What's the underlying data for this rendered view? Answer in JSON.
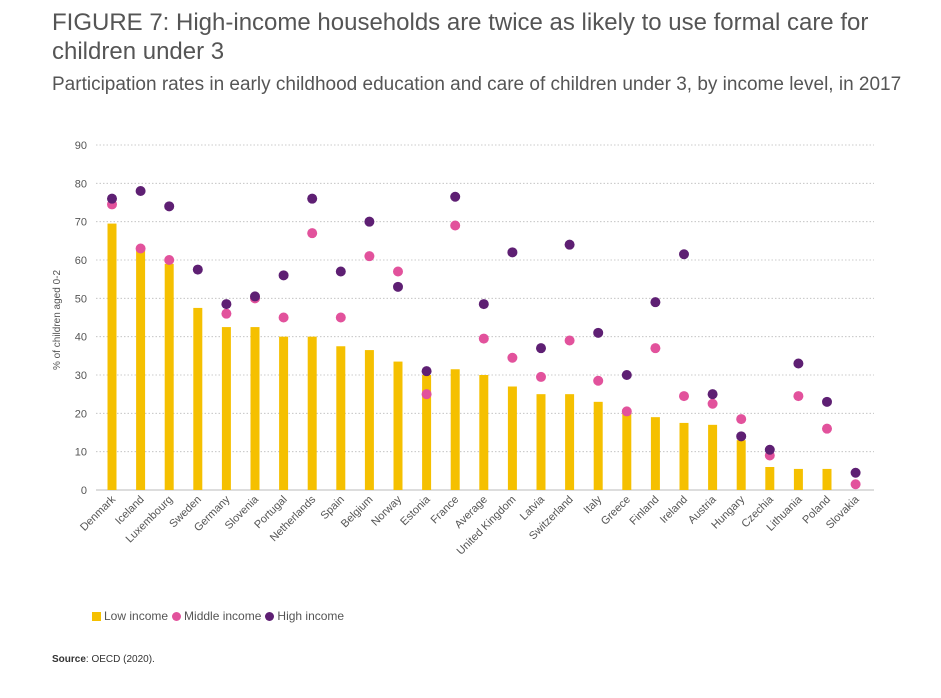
{
  "title": "FIGURE 7: High-income households are twice as likely to use formal care for children under 3",
  "subtitle": "Participation rates in early childhood education and care of children under 3, by income level, in 2017",
  "source_label": "Source",
  "source_text": ": OECD (2020).",
  "colors": {
    "low": "#F5C000",
    "middle": "#E2529C",
    "high": "#5E1F73",
    "grid": "#BBBBBB",
    "text": "#555555"
  },
  "chart_data": {
    "type": "bar",
    "title": "FIGURE 7: High-income households are twice as likely to use formal care for children under 3",
    "xlabel": "",
    "ylabel": "% of children aged 0-2",
    "ylim": [
      0,
      90
    ],
    "yticks": [
      0,
      10,
      20,
      30,
      40,
      50,
      60,
      70,
      80,
      90
    ],
    "grid": true,
    "legend_position": "bottom-left",
    "categories": [
      "Denmark",
      "Iceland",
      "Luxembourg",
      "Sweden",
      "Germany",
      "Slovenia",
      "Portugal",
      "Netherlands",
      "Spain",
      "Belgium",
      "Norway",
      "Estonia",
      "France",
      "Average",
      "United Kingdom",
      "Latvia",
      "Switzerland",
      "Italy",
      "Greece",
      "Finland",
      "Ireland",
      "Austria",
      "Hungary",
      "Czechia",
      "Lithuania",
      "Poland",
      "Slovakia"
    ],
    "series": [
      {
        "name": "Low income",
        "kind": "bar",
        "values": [
          69.5,
          62.5,
          59,
          47.5,
          42.5,
          42.5,
          40,
          40,
          37.5,
          36.5,
          33.5,
          30,
          31.5,
          30,
          27,
          25,
          25,
          23,
          21,
          19,
          17.5,
          17,
          13,
          6,
          5.5,
          5.5,
          0
        ]
      },
      {
        "name": "Middle income",
        "kind": "dot",
        "values": [
          74.5,
          63,
          60,
          null,
          46,
          50,
          45,
          67,
          45,
          61,
          57,
          25,
          69,
          39.5,
          34.5,
          29.5,
          39,
          28.5,
          20.5,
          37,
          24.5,
          22.5,
          18.5,
          9,
          24.5,
          16,
          1.5
        ]
      },
      {
        "name": "High income",
        "kind": "dot",
        "values": [
          76,
          78,
          74,
          57.5,
          48.5,
          50.5,
          56,
          76,
          57,
          70,
          53,
          31,
          76.5,
          48.5,
          62,
          37,
          64,
          41,
          30,
          49,
          61.5,
          25,
          14,
          10.5,
          33,
          23,
          4.5
        ]
      }
    ]
  }
}
